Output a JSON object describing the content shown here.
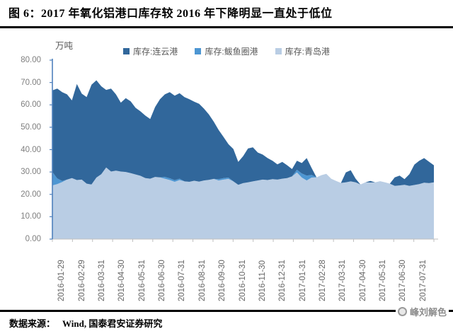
{
  "figure": {
    "title": "图 6：2017 年氧化铝港口库存较 2016 年下降明显一直处于低位",
    "source_label": "数据来源：",
    "source_text": "Wind, 国泰君安证券研究",
    "watermark": "峰刘解色"
  },
  "chart_data": {
    "type": "area",
    "stacked": true,
    "title": "2017 年氧化铝港口库存较 2016 年下降明显一直处于低位",
    "xlabel": "",
    "ylabel": "万吨",
    "ylim": [
      0,
      80
    ],
    "ytick_step": 10,
    "grid": false,
    "legend_position": "top",
    "y_tick_labels": [
      "80.00",
      "70.00",
      "60.00",
      "50.00",
      "40.00",
      "30.00",
      "20.00",
      "10.00",
      "0.00"
    ],
    "x_tick_labels": [
      "2016-01-29",
      "2016-02-29",
      "2016-03-31",
      "2016-04-30",
      "2016-05-31",
      "2016-06-30",
      "2016-07-31",
      "2016-08-31",
      "2016-09-30",
      "2016-10-31",
      "2016-11-30",
      "2016-12-31",
      "2017-01-31",
      "2017-02-28",
      "2017-03-31",
      "2017-04-30",
      "2017-05-31",
      "2017-06-30",
      "2017-07-31"
    ],
    "x_frequency": "weekly",
    "x_range": [
      "2016-01-29",
      "2017-07-28"
    ],
    "stack_bottom_to_top": [
      2,
      1,
      0
    ],
    "series": [
      {
        "name": "库存:连云港",
        "color": "#31679B",
        "values": [
          36.5,
          40.2,
          39.7,
          38.1,
          34.7,
          42.9,
          38.4,
          38.7,
          44.6,
          43.5,
          39.3,
          34.7,
          37.1,
          34.1,
          30.8,
          33.0,
          32.1,
          29.8,
          28.8,
          27.9,
          26.7,
          31.2,
          34.9,
          36.9,
          38.5,
          37.8,
          38.2,
          37.7,
          36.9,
          35.3,
          34.8,
          32.1,
          29.2,
          25.6,
          22.0,
          18.3,
          14.9,
          14.5,
          10.2,
          12.1,
          15.1,
          15.2,
          12.5,
          11.2,
          9.8,
          8.2,
          6.8,
          7.5,
          5.7,
          3.3,
          4.0,
          4.7,
          7.8,
          3.1,
          0,
          0,
          0,
          0,
          0,
          0,
          4.4,
          5.0,
          1.6,
          0,
          0,
          0.7,
          0,
          0,
          0,
          0,
          3.8,
          4.4,
          2.5,
          5.2,
          9.1,
          10.4,
          11.0,
          9.6,
          7.6
        ]
      },
      {
        "name": "库存:鲅鱼圈港",
        "color": "#4D96D2",
        "values": [
          6.0,
          2.5,
          0.5,
          0,
          0,
          0,
          0,
          0,
          0,
          0,
          0,
          0,
          0,
          0,
          0,
          0,
          0,
          0,
          0,
          0,
          0,
          0,
          0,
          0.8,
          0.8,
          0.7,
          0.6,
          0,
          0,
          0,
          0,
          0,
          0,
          0,
          0.6,
          0.7,
          0.6,
          0,
          0,
          0,
          0,
          0,
          0,
          0,
          0,
          0,
          0,
          0,
          0,
          0,
          1.2,
          1.8,
          2.2,
          1.2,
          0,
          0,
          0,
          0,
          0,
          0,
          0,
          0,
          0,
          0,
          0,
          0,
          0,
          0,
          0,
          0,
          0,
          0,
          0,
          0,
          0,
          0,
          0,
          0,
          0
        ]
      },
      {
        "name": "库存:青岛港",
        "color": "#B9CDE4",
        "values": [
          24.0,
          24.6,
          25.5,
          26.6,
          27.3,
          26.4,
          26.6,
          24.8,
          24.4,
          27.5,
          29.0,
          32.0,
          30.2,
          30.6,
          30.2,
          30.0,
          29.5,
          28.9,
          28.3,
          27.3,
          27.0,
          27.8,
          27.6,
          27.0,
          26.4,
          25.6,
          26.4,
          25.8,
          25.6,
          26.1,
          25.7,
          26.2,
          26.5,
          26.9,
          26.2,
          26.6,
          26.9,
          25.8,
          24.3,
          25.0,
          25.4,
          25.8,
          26.2,
          26.6,
          26.4,
          26.8,
          26.6,
          27.0,
          27.3,
          28.0,
          29.8,
          27.5,
          26.2,
          27.5,
          27.6,
          28.6,
          29.2,
          27.0,
          26.0,
          25.1,
          25.4,
          25.8,
          25.4,
          24.4,
          25.4,
          25.3,
          25.4,
          25.9,
          25.4,
          24.8,
          23.8,
          24.0,
          24.3,
          23.8,
          24.2,
          24.6,
          25.2,
          25.0,
          25.4
        ]
      }
    ],
    "axis_colors": {
      "y_axis": "#4F81BD",
      "x_axis": "#BFBFBF"
    }
  }
}
